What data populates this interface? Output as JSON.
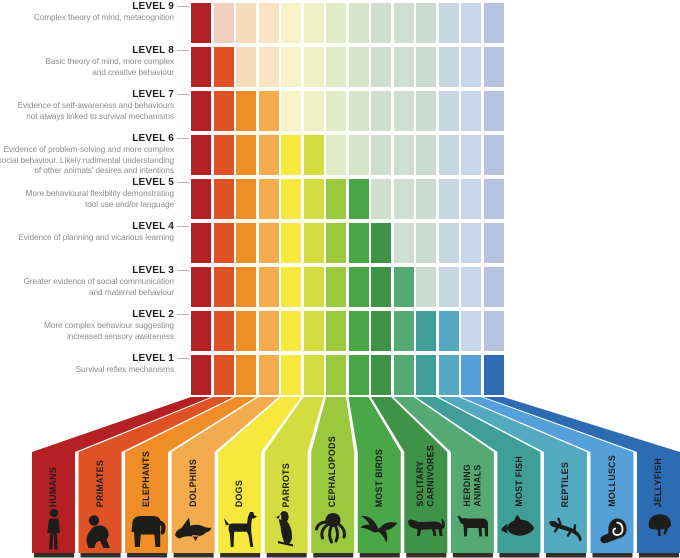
{
  "chart_data": {
    "type": "heatmap",
    "description_rule": "cell is saturated when animal max_level >= row level, otherwise faded tint",
    "levels": [
      {
        "num": 9,
        "label": "LEVEL 9",
        "description": "Complex theory of mind, metacognition"
      },
      {
        "num": 8,
        "label": "LEVEL 8",
        "description": "Basic theory of mind, more complex\nand creative behaviour"
      },
      {
        "num": 7,
        "label": "LEVEL 7",
        "description": "Evidence of self-awareness and behaviours\nnot always linked to survival mechanisms"
      },
      {
        "num": 6,
        "label": "LEVEL 6",
        "description": "Evidence of problem-solving and more complex\nsocial behaviour. Likely rudimental understanding\nof other animals' desires and intentions"
      },
      {
        "num": 5,
        "label": "LEVEL 5",
        "description": "More behavioural flexibility demonstrating\ntool use and/or language"
      },
      {
        "num": 4,
        "label": "LEVEL 4",
        "description": "Evidence of planning and vicarious learning"
      },
      {
        "num": 3,
        "label": "LEVEL 3",
        "description": "Greater evidence of social communication\nand maternal behaviour"
      },
      {
        "num": 2,
        "label": "LEVEL 2",
        "description": "More complex behaviour suggesting\nincreased sensory awareness"
      },
      {
        "num": 1,
        "label": "LEVEL 1",
        "description": "Survival reflex mechanisms"
      }
    ],
    "animals": [
      {
        "label": "HUMANS",
        "max_level": 9,
        "color": "#b52025",
        "faded_color": "#e9c5bd",
        "icon": "human-icon"
      },
      {
        "label": "PRIMATES",
        "max_level": 8,
        "color": "#df5226",
        "faded_color": "#f2cfc0",
        "icon": "primate-icon"
      },
      {
        "label": "ELEPHANTS",
        "max_level": 7,
        "color": "#ef8d27",
        "faded_color": "#f6dcbb",
        "icon": "elephant-icon"
      },
      {
        "label": "DOLPHINS",
        "max_level": 7,
        "color": "#f3ab4e",
        "faded_color": "#f8e4c3",
        "icon": "dolphin-icon"
      },
      {
        "label": "DOGS",
        "max_level": 6,
        "color": "#f6e83c",
        "faded_color": "#f7f2c8",
        "icon": "dog-icon"
      },
      {
        "label": "PARROTS",
        "max_level": 6,
        "color": "#d4dd40",
        "faded_color": "#eef0c5",
        "icon": "parrot-icon"
      },
      {
        "label": "CEPHALOPODS",
        "max_level": 5,
        "color": "#9cc83d",
        "faded_color": "#e1ebc6",
        "icon": "octopus-icon"
      },
      {
        "label": "MOST BIRDS",
        "max_level": 5,
        "color": "#49a747",
        "faded_color": "#d5e5c9",
        "icon": "bird-icon"
      },
      {
        "label": "SOLITARY CARNIVORES",
        "max_level": 4,
        "color": "#3f9349",
        "faded_color": "#cfdfcd",
        "icon": "bigcat-icon"
      },
      {
        "label": "HERDING ANIMALS",
        "max_level": 3,
        "color": "#55aa74",
        "faded_color": "#cfe0d2",
        "icon": "cow-icon"
      },
      {
        "label": "MOST FISH",
        "max_level": 2,
        "color": "#3f9e97",
        "faded_color": "#cbdcd3",
        "icon": "fish-icon"
      },
      {
        "label": "REPTILES",
        "max_level": 2,
        "color": "#52a9c0",
        "faded_color": "#c6d6e3",
        "icon": "lizard-icon"
      },
      {
        "label": "MOLLUSCS",
        "max_level": 1,
        "color": "#55a0d8",
        "faded_color": "#c7d6ea",
        "icon": "shell-icon"
      },
      {
        "label": "JELLYFISH",
        "max_level": 1,
        "color": "#2d6bb3",
        "faded_color": "#b7c3de",
        "icon": "jellyfish-icon"
      }
    ],
    "style": {
      "level_label_color": "#1d1d1b",
      "description_color": "#8d8d8d",
      "connector_color": "#b9b0ae",
      "baseline_strip_color": "#332e2a",
      "silhouette_color": "#1d1d1b",
      "background": "#ffffff"
    },
    "legend_position": "none",
    "grid": "on"
  }
}
